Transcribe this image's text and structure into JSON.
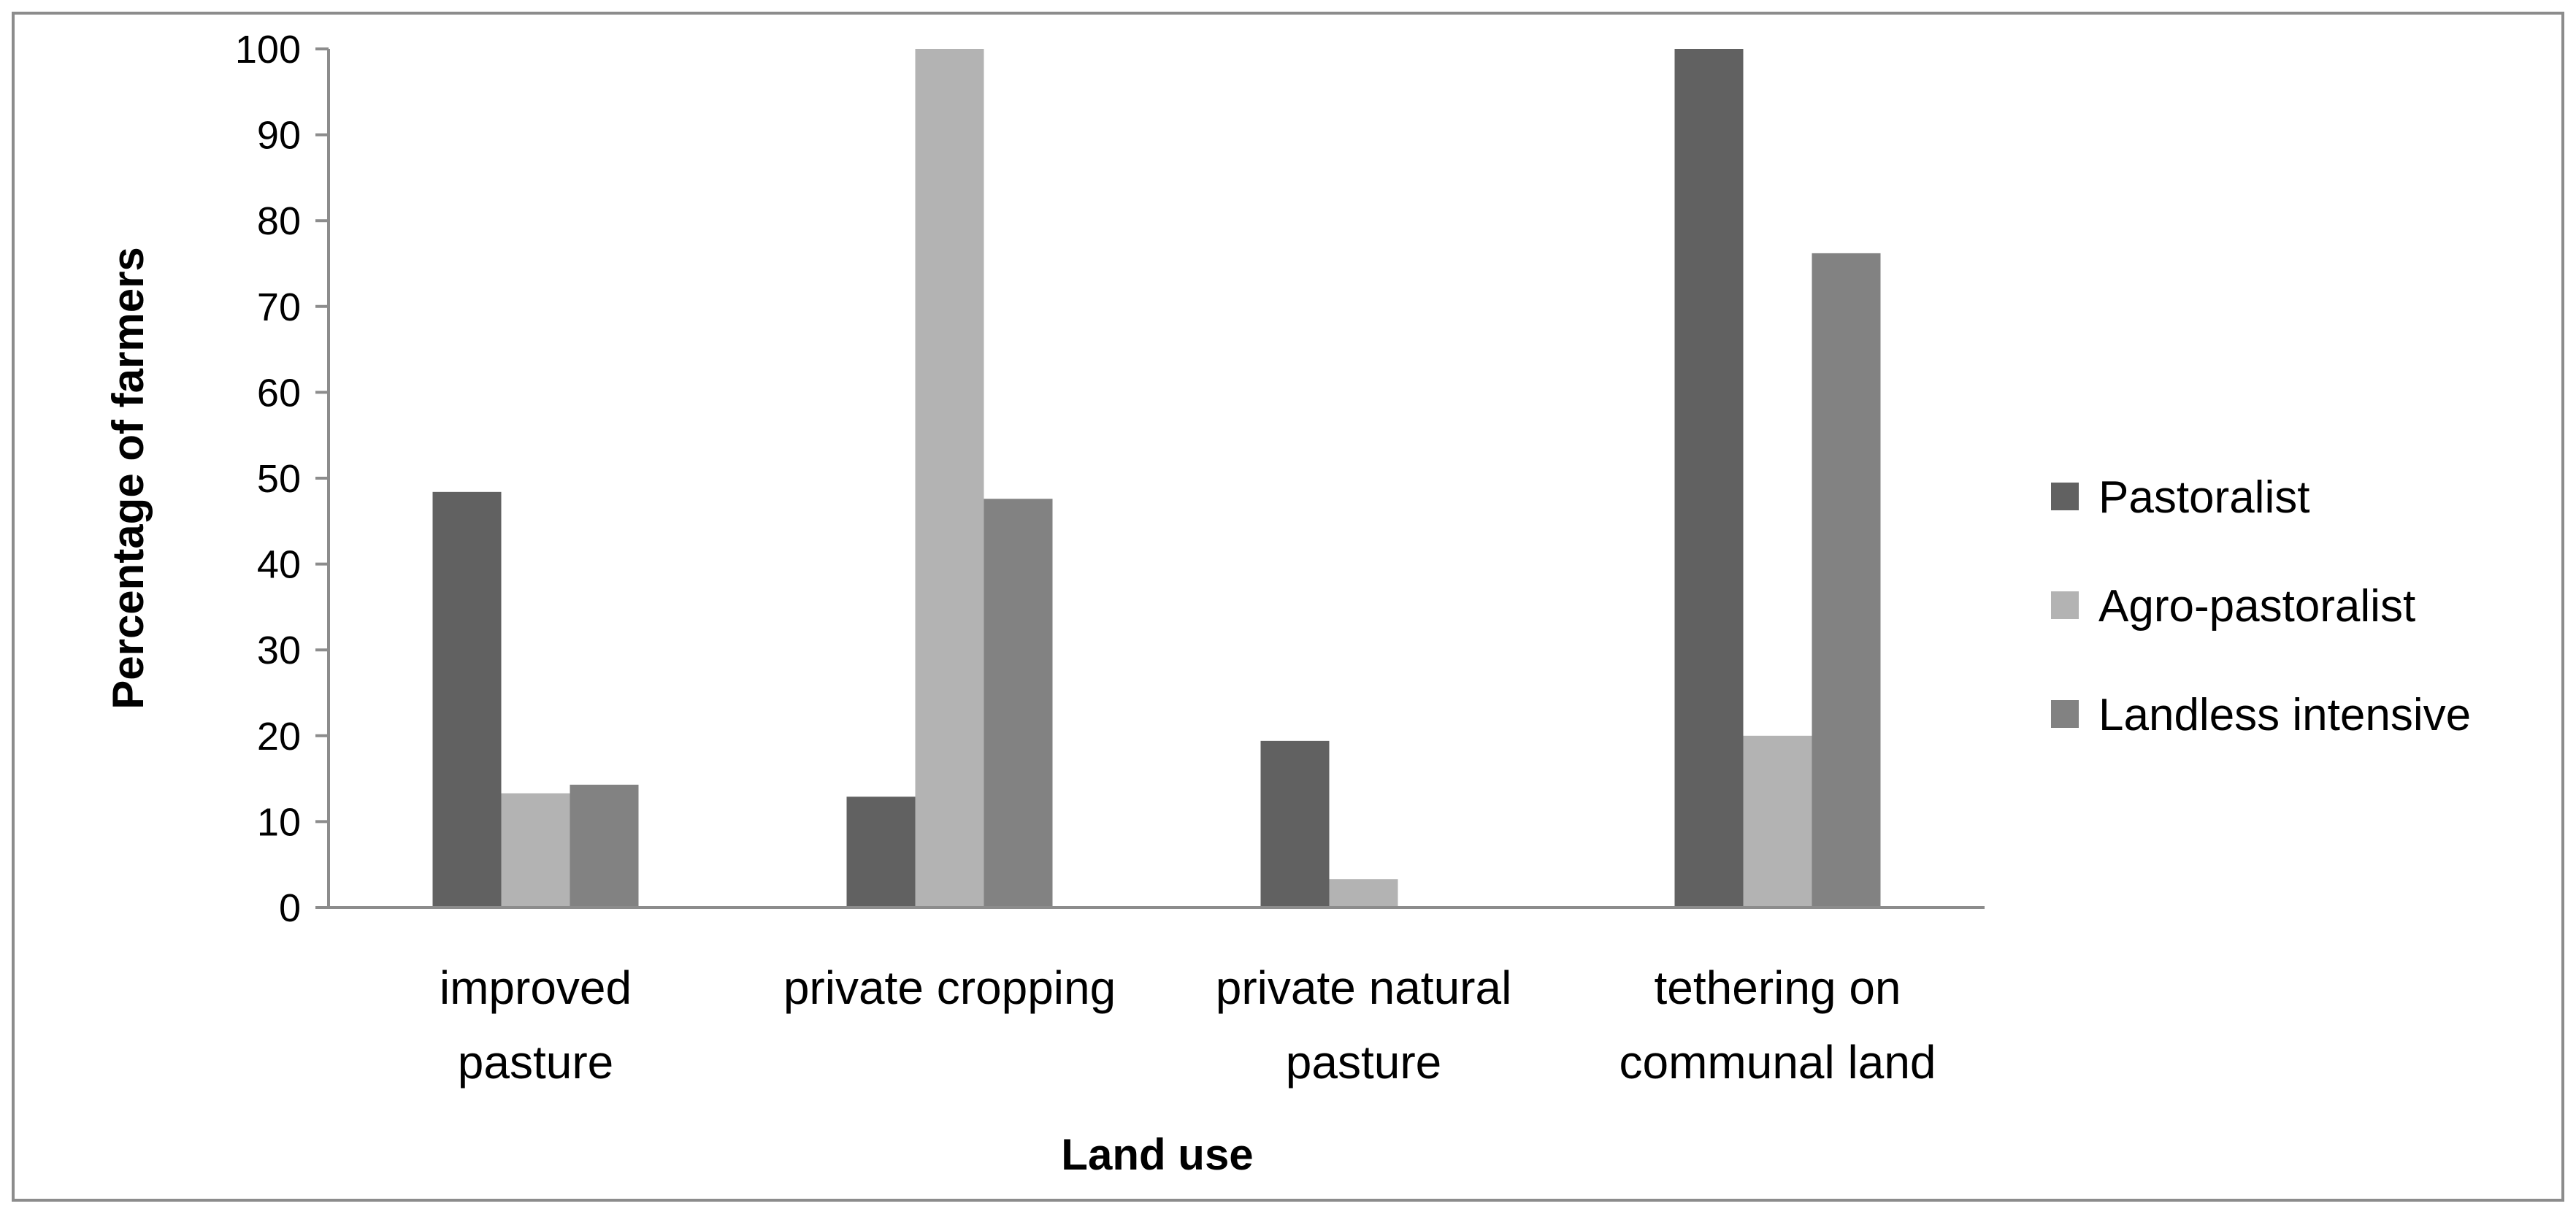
{
  "chart_data": {
    "type": "bar",
    "title": "",
    "xlabel": "Land use",
    "ylabel": "Percentage of farmers",
    "ylim": [
      0,
      100
    ],
    "yticks": [
      0,
      10,
      20,
      30,
      40,
      50,
      60,
      70,
      80,
      90,
      100
    ],
    "grid": false,
    "legend_position": "right",
    "categories": [
      [
        "improved",
        "pasture"
      ],
      [
        "private cropping"
      ],
      [
        "private natural",
        "pasture"
      ],
      [
        "tethering on",
        "communal land"
      ]
    ],
    "series": [
      {
        "name": "Pastoralist",
        "color": "#616161",
        "values": [
          48.4,
          12.9,
          19.4,
          100
        ]
      },
      {
        "name": "Agro-pastoralist",
        "color": "#b3b3b3",
        "values": [
          13.3,
          100,
          3.3,
          20
        ]
      },
      {
        "name": "Landless intensive",
        "color": "#828282",
        "values": [
          14.3,
          47.6,
          0,
          76.2
        ]
      }
    ],
    "colors": {
      "frame": "#8c8c8c",
      "axis": "#8c8c8c"
    }
  }
}
